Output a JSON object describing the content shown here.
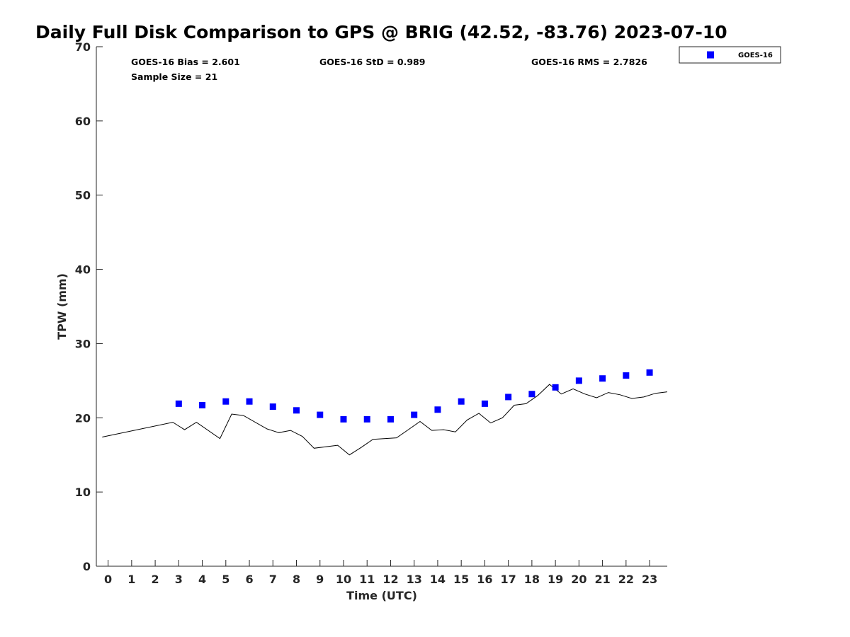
{
  "chart_data": {
    "type": "scatter",
    "title": "Daily Full Disk Comparison to GPS @ BRIG (42.52, -83.76) 2023-07-10",
    "xlabel": "Time (UTC)",
    "ylabel": "TPW (mm)",
    "xlim": [
      -0.5,
      23.75
    ],
    "ylim": [
      0,
      70
    ],
    "x_ticks": [
      0,
      1,
      2,
      3,
      4,
      5,
      6,
      7,
      8,
      9,
      10,
      11,
      12,
      13,
      14,
      15,
      16,
      17,
      18,
      19,
      20,
      21,
      22,
      23
    ],
    "y_ticks": [
      0,
      10,
      20,
      30,
      40,
      50,
      60,
      70
    ],
    "grid": false,
    "legend_position": "top-right, outside",
    "stats": {
      "bias": "GOES-16 Bias = 2.601",
      "std": "GOES-16 StD = 0.989",
      "rms": "GOES-16 RMS = 2.7826",
      "sample_size": "Sample Size = 21"
    },
    "series": [
      {
        "name": "GOES-16",
        "style": "markers",
        "color": "#0000ff",
        "x": [
          3,
          4,
          5,
          6,
          7,
          8,
          9,
          10,
          11,
          12,
          13,
          14,
          15,
          16,
          17,
          18,
          19,
          20,
          21,
          22,
          23
        ],
        "y": [
          21.9,
          21.7,
          22.2,
          22.2,
          21.5,
          21.0,
          20.4,
          19.8,
          19.8,
          19.8,
          20.4,
          21.1,
          22.2,
          21.9,
          22.8,
          23.2,
          24.1,
          25.0,
          25.3,
          25.7,
          26.1
        ]
      },
      {
        "name": "",
        "style": "line",
        "color": "#000000",
        "x": [
          -0.25,
          2.75,
          3.25,
          3.75,
          4.75,
          5.25,
          5.75,
          6.75,
          7.25,
          7.75,
          8.25,
          8.75,
          9.75,
          10.25,
          10.75,
          11.25,
          12.25,
          12.75,
          13.25,
          13.75,
          14.25,
          14.75,
          15.25,
          15.75,
          16.25,
          16.75,
          17.25,
          17.75,
          18.25,
          18.75,
          19.25,
          19.75,
          20.25,
          20.75,
          21.25,
          21.75,
          22.25,
          22.75,
          23.25,
          23.75
        ],
        "y": [
          17.4,
          19.4,
          18.4,
          19.4,
          17.2,
          20.5,
          20.3,
          18.5,
          18.0,
          18.3,
          17.5,
          15.9,
          16.3,
          15.0,
          16.0,
          17.1,
          17.3,
          18.4,
          19.5,
          18.3,
          18.4,
          18.1,
          19.7,
          20.6,
          19.3,
          20.0,
          21.7,
          21.9,
          23.0,
          24.5,
          23.2,
          23.9,
          23.2,
          22.7,
          23.4,
          23.1,
          22.6,
          22.8,
          23.3,
          23.5
        ]
      }
    ]
  }
}
